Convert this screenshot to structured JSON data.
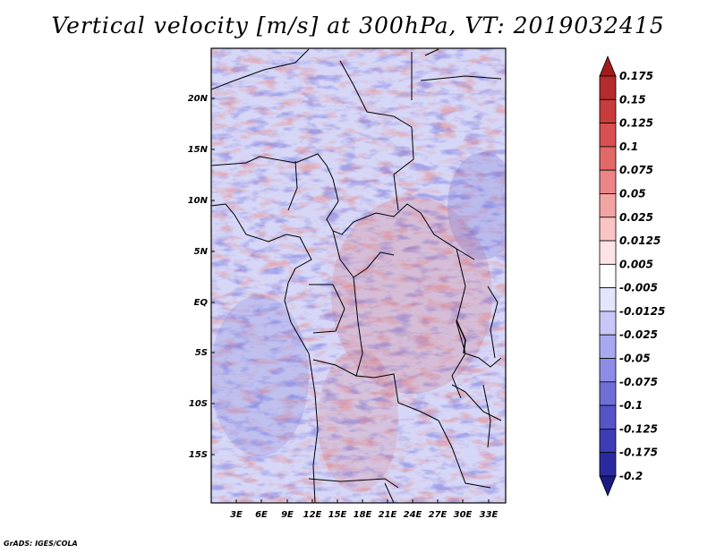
{
  "title": "Vertical velocity [m/s] at 300hPa, VT: 2019032415",
  "credit": "GrADS: IGES/COLA",
  "map": {
    "lat_labels": [
      "20N",
      "15N",
      "10N",
      "5N",
      "EQ",
      "5S",
      "10S",
      "15S"
    ],
    "lon_labels": [
      "3E",
      "6E",
      "9E",
      "12E",
      "15E",
      "18E",
      "21E",
      "24E",
      "27E",
      "30E",
      "33E"
    ]
  },
  "colorbar": {
    "labels": [
      "0.175",
      "0.15",
      "0.125",
      "0.1",
      "0.075",
      "0.05",
      "0.025",
      "0.0125",
      "0.005",
      "-0.005",
      "-0.0125",
      "-0.025",
      "-0.05",
      "-0.075",
      "-0.1",
      "-0.125",
      "-0.175",
      "-0.2"
    ],
    "colors": [
      "#a01c1c",
      "#b52a2a",
      "#c83c3c",
      "#d85050",
      "#e36868",
      "#ec8585",
      "#f4a3a3",
      "#f9c4c4",
      "#fde4e4",
      "#ffffff",
      "#e4e4fd",
      "#c8c8f8",
      "#a8a8f0",
      "#8c8ce6",
      "#6f6fd8",
      "#5555c8",
      "#3c3cb4",
      "#2a2aa0",
      "#1a1a85"
    ]
  }
}
